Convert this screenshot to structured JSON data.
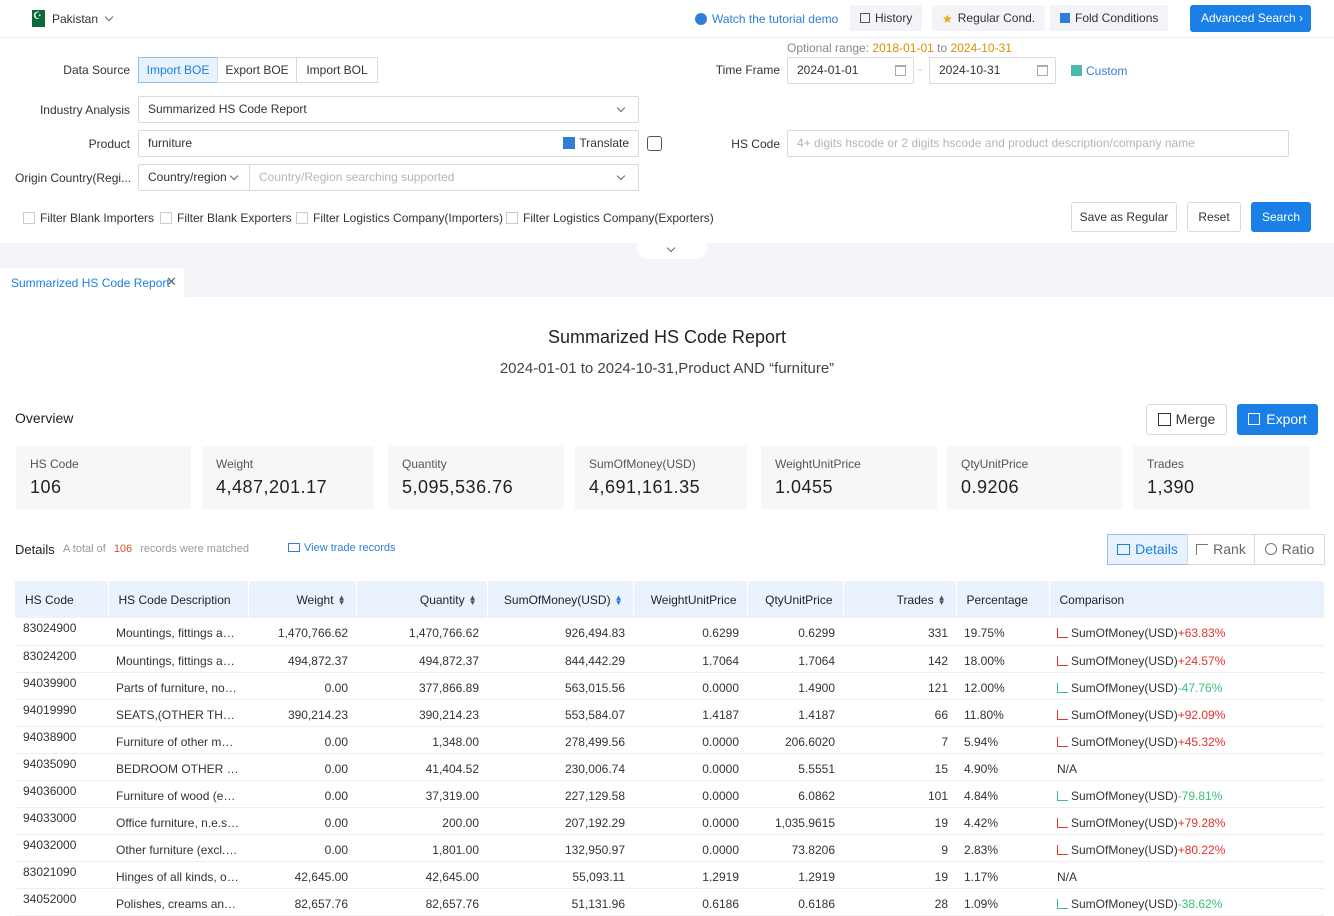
{
  "topbar": {
    "country": "Pakistan",
    "tutorial": "Watch the tutorial demo",
    "history": "History",
    "regular_cond": "Regular Cond.",
    "fold_conditions": "Fold Conditions",
    "advanced_search": "Advanced Search"
  },
  "form": {
    "data_source_label": "Data Source",
    "data_source_options": [
      "Import BOE",
      "Export BOE",
      "Import BOL"
    ],
    "industry_label": "Industry Analysis",
    "industry_value": "Summarized HS Code Report",
    "product_label": "Product",
    "product_value": "furniture",
    "translate": "Translate",
    "origin_label": "Origin Country(Regi...",
    "origin_type": "Country/region",
    "origin_placeholder": "Country/Region searching supported",
    "optional_prefix": "Optional range:",
    "optional_from": "2018-01-01",
    "optional_to_word": "to",
    "optional_to": "2024-10-31",
    "timeframe_label": "Time Frame",
    "date_from": "2024-01-01",
    "date_to": "2024-10-31",
    "custom": "Custom",
    "hscode_label": "HS Code",
    "hscode_placeholder": "4+ digits hscode or 2 digits hscode and product description/company name",
    "filters": [
      "Filter Blank Importers",
      "Filter Blank Exporters",
      "Filter Logistics Company(Importers)",
      "Filter Logistics Company(Exporters)"
    ],
    "save_regular": "Save as Regular",
    "reset": "Reset",
    "search": "Search"
  },
  "tab_label": "Summarized HS Code Report",
  "report": {
    "title": "Summarized HS Code Report",
    "subtitle": "2024-01-01 to 2024-10-31,Product AND “furniture”"
  },
  "overview": {
    "title": "Overview",
    "merge": "Merge",
    "export": "Export",
    "cards": [
      {
        "label": "HS Code",
        "value": "106"
      },
      {
        "label": "Weight",
        "value": "4,487,201.17"
      },
      {
        "label": "Quantity",
        "value": "5,095,536.76"
      },
      {
        "label": "SumOfMoney(USD)",
        "value": "4,691,161.35"
      },
      {
        "label": "WeightUnitPrice",
        "value": "1.0455"
      },
      {
        "label": "QtyUnitPrice",
        "value": "0.9206"
      },
      {
        "label": "Trades",
        "value": "1,390"
      }
    ]
  },
  "details": {
    "title": "Details",
    "total_prefix": "A total of",
    "total_count": "106",
    "total_suffix": "records were matched",
    "view_records": "View trade records",
    "view_tabs": [
      "Details",
      "Rank",
      "Ratio"
    ],
    "columns": [
      "HS Code",
      "HS Code Description",
      "Weight",
      "Quantity",
      "SumOfMoney(USD)",
      "WeightUnitPrice",
      "QtyUnitPrice",
      "Trades",
      "Percentage",
      "Comparison"
    ],
    "rows": [
      {
        "code": "83024900",
        "desc": "Mountings, fittings and...",
        "weight": "1,470,766.62",
        "qty": "1,470,766.62",
        "money": "926,494.83",
        "wup": "0.6299",
        "qup": "0.6299",
        "trades": "331",
        "pct": "19.75%",
        "cmp_label": "SumOfMoney(USD)",
        "cmp_change": "+63.83%",
        "dir": "up"
      },
      {
        "code": "83024200",
        "desc": "Mountings, fittings and...",
        "weight": "494,872.37",
        "qty": "494,872.37",
        "money": "844,442.29",
        "wup": "1.7064",
        "qup": "1.7064",
        "trades": "142",
        "pct": "18.00%",
        "cmp_label": "SumOfMoney(USD)",
        "cmp_change": "+24.57%",
        "dir": "up"
      },
      {
        "code": "94039900",
        "desc": "Parts of furniture, not o...",
        "weight": "0.00",
        "qty": "377,866.89",
        "money": "563,015.56",
        "wup": "0.0000",
        "qup": "1.4900",
        "trades": "121",
        "pct": "12.00%",
        "cmp_label": "SumOfMoney(USD)",
        "cmp_change": "-47.76%",
        "dir": "down"
      },
      {
        "code": "94019990",
        "desc": "SEATS,(OTHER THAN O...",
        "weight": "390,214.23",
        "qty": "390,214.23",
        "money": "553,584.07",
        "wup": "1.4187",
        "qup": "1.4187",
        "trades": "66",
        "pct": "11.80%",
        "cmp_label": "SumOfMoney(USD)",
        "cmp_change": "+92.09%",
        "dir": "up"
      },
      {
        "code": "94038900",
        "desc": "Furniture of other mate...",
        "weight": "0.00",
        "qty": "1,348.00",
        "money": "278,499.56",
        "wup": "0.0000",
        "qup": "206.6020",
        "trades": "7",
        "pct": "5.94%",
        "cmp_label": "SumOfMoney(USD)",
        "cmp_change": "+45.32%",
        "dir": "up"
      },
      {
        "code": "94035090",
        "desc": "BEDROOM OTHER WO...",
        "weight": "0.00",
        "qty": "41,404.52",
        "money": "230,006.74",
        "wup": "0.0000",
        "qup": "5.5551",
        "trades": "15",
        "pct": "4.90%",
        "cmp_label": "N/A",
        "cmp_change": "",
        "dir": "none"
      },
      {
        "code": "94036000",
        "desc": "Furniture of wood (excl...",
        "weight": "0.00",
        "qty": "37,319.00",
        "money": "227,129.58",
        "wup": "0.0000",
        "qup": "6.0862",
        "trades": "101",
        "pct": "4.84%",
        "cmp_label": "SumOfMoney(USD)",
        "cmp_change": "-79.81%",
        "dir": "down"
      },
      {
        "code": "94033000",
        "desc": "Office furniture, n.e.s., ...",
        "weight": "0.00",
        "qty": "200.00",
        "money": "207,192.29",
        "wup": "0.0000",
        "qup": "1,035.9615",
        "trades": "19",
        "pct": "4.42%",
        "cmp_label": "SumOfMoney(USD)",
        "cmp_change": "+79.28%",
        "dir": "up"
      },
      {
        "code": "94032000",
        "desc": "Other furniture (excl. of...",
        "weight": "0.00",
        "qty": "1,801.00",
        "money": "132,950.97",
        "wup": "0.0000",
        "qup": "73.8206",
        "trades": "9",
        "pct": "2.83%",
        "cmp_label": "SumOfMoney(USD)",
        "cmp_change": "+80.22%",
        "dir": "up"
      },
      {
        "code": "83021090",
        "desc": "Hinges of all kinds, of b...",
        "weight": "42,645.00",
        "qty": "42,645.00",
        "money": "55,093.11",
        "wup": "1.2919",
        "qup": "1.2919",
        "trades": "19",
        "pct": "1.17%",
        "cmp_label": "N/A",
        "cmp_change": "",
        "dir": "none"
      },
      {
        "code": "34052000",
        "desc": "Polishes, creams and s...",
        "weight": "82,657.76",
        "qty": "82,657.76",
        "money": "51,131.96",
        "wup": "0.6186",
        "qup": "0.6186",
        "trades": "28",
        "pct": "1.09%",
        "cmp_label": "SumOfMoney(USD)",
        "cmp_change": "-38.62%",
        "dir": "down"
      }
    ]
  }
}
